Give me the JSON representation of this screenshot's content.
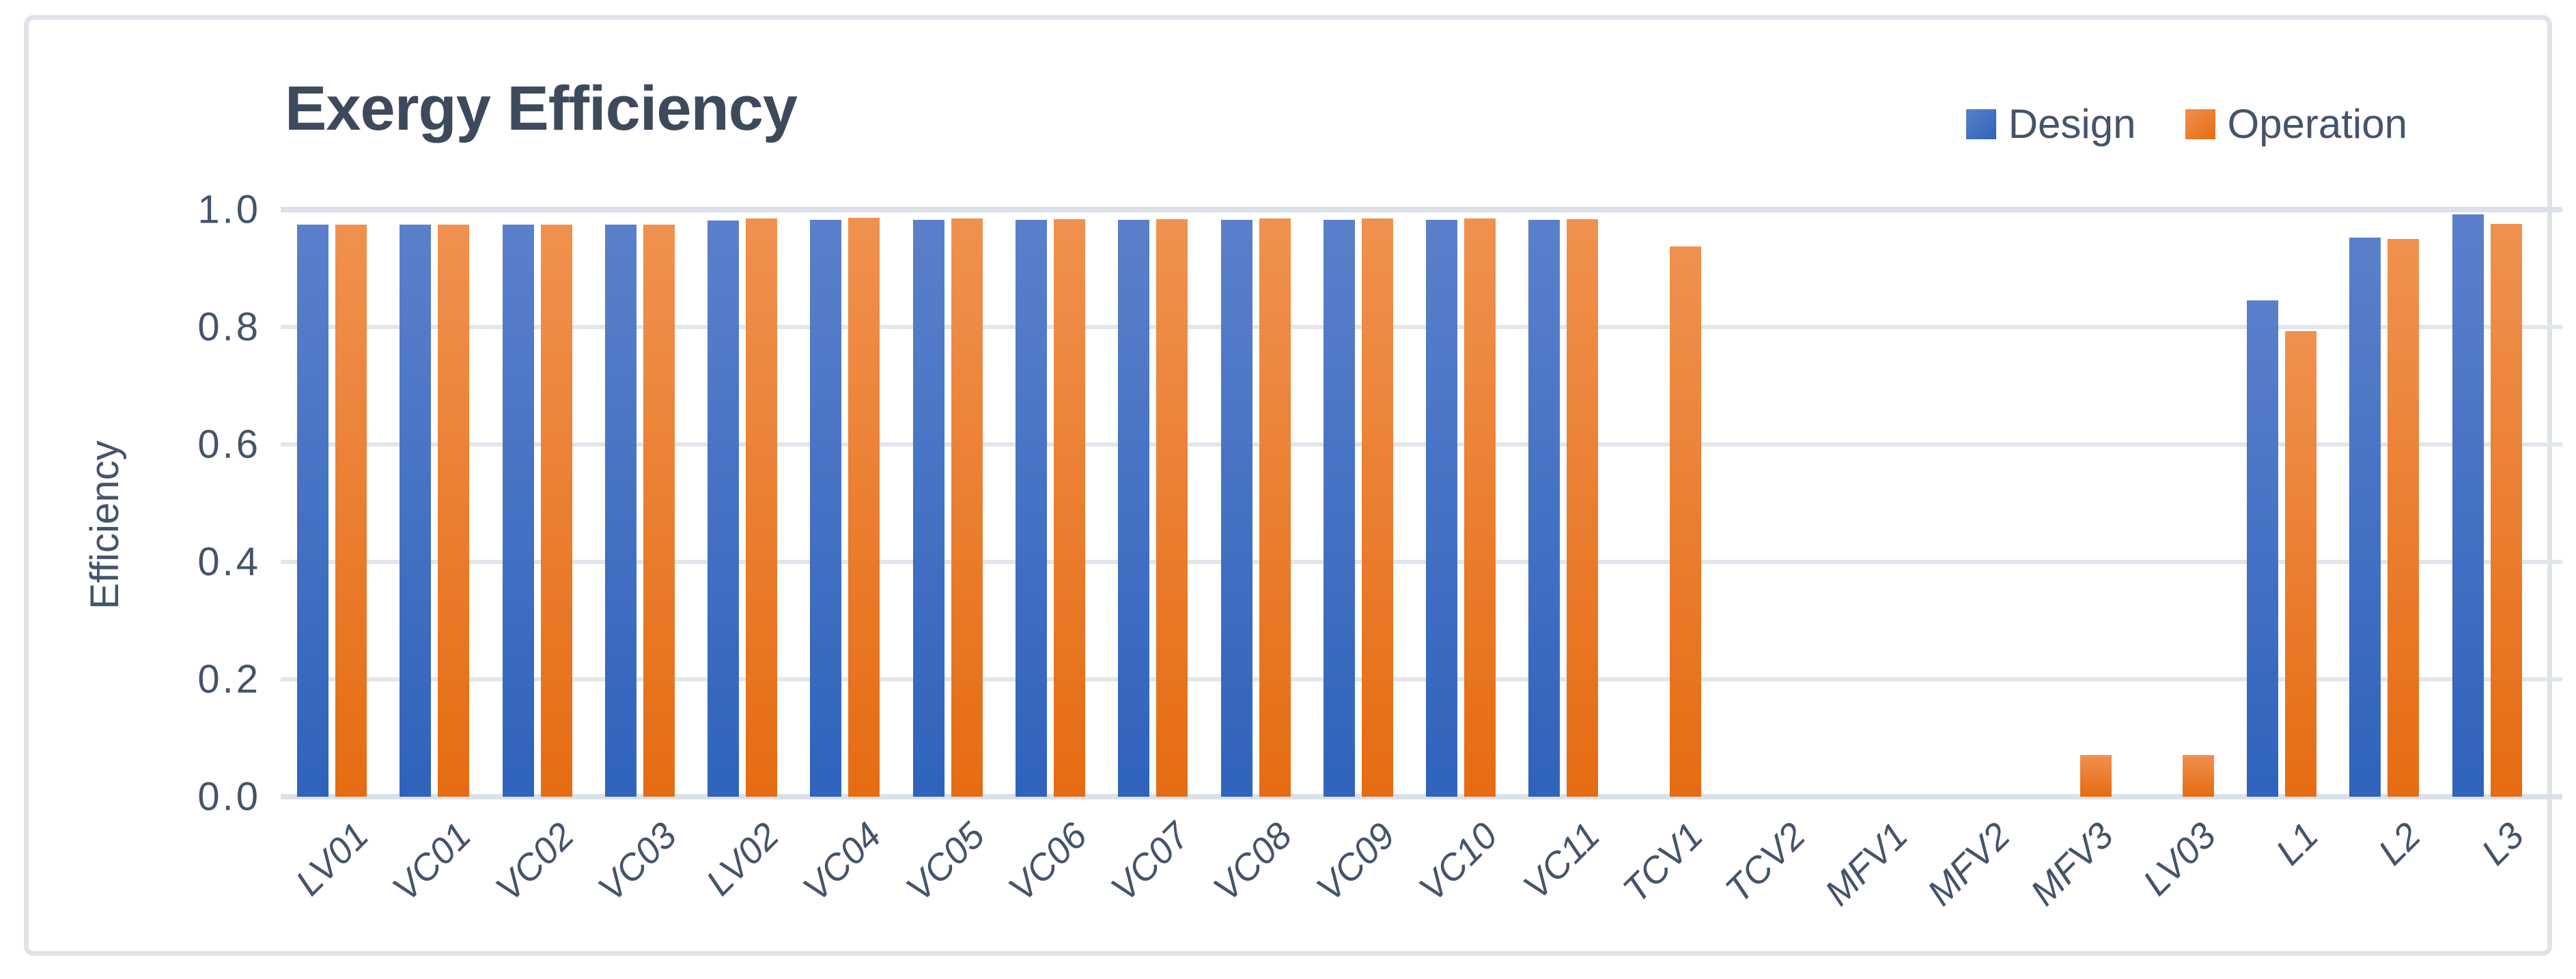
{
  "chart": {
    "title": "Exergy Efficiency",
    "y_axis_title": "Efficiency",
    "legend": [
      "Design",
      "Operation"
    ]
  },
  "colors": {
    "design_top": "#5b80cb",
    "design_bottom": "#2f63bc",
    "operation_top": "#f0914f",
    "operation_bottom": "#e56c12",
    "text": "#44546a",
    "title_text": "#3e4a5c",
    "gridline": "#e1e5ec",
    "frame_border": "#dee3ea"
  },
  "chart_data": {
    "type": "bar",
    "title": "Exergy Efficiency",
    "xlabel": "",
    "ylabel": "Efficiency",
    "ylim": [
      0,
      1
    ],
    "yticks": [
      1.0,
      0.8,
      0.6,
      0.4,
      0.2,
      0.0
    ],
    "ytick_labels": [
      "1.0",
      "0.8",
      "0.6",
      "0.4",
      "0.2",
      "0.0"
    ],
    "grid": "horizontal",
    "legend_position": "top-right",
    "categories": [
      "LV01",
      "VC01",
      "VC02",
      "VC03",
      "LV02",
      "VC04",
      "VC05",
      "VC06",
      "VC07",
      "VC08",
      "VC09",
      "VC10",
      "VC11",
      "TCV1",
      "TCV2",
      "MFV1",
      "MFV2",
      "MFV3",
      "LV03",
      "L1",
      "L2",
      "L3"
    ],
    "series": [
      {
        "name": "Design",
        "values": [
          0.975,
          0.975,
          0.974,
          0.974,
          0.981,
          0.982,
          0.982,
          0.982,
          0.982,
          0.982,
          0.982,
          0.982,
          0.982,
          null,
          null,
          null,
          null,
          null,
          null,
          0.845,
          0.952,
          0.992
        ]
      },
      {
        "name": "Operation",
        "values": [
          0.975,
          0.975,
          0.974,
          0.974,
          0.985,
          0.986,
          0.985,
          0.984,
          0.984,
          0.985,
          0.985,
          0.985,
          0.984,
          0.937,
          null,
          null,
          null,
          0.071,
          0.071,
          0.793,
          0.95,
          0.976
        ]
      }
    ]
  }
}
